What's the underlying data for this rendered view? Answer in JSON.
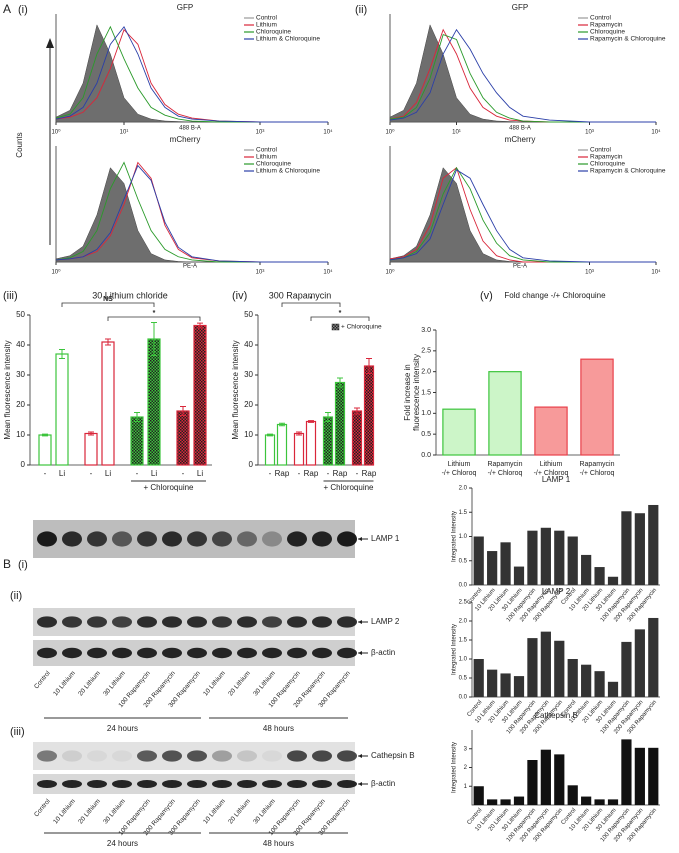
{
  "figure_labels": [
    "A",
    "B"
  ],
  "blots": {
    "lanes": [
      "Control",
      "10 Lithium",
      "20 Lithium",
      "30 Lithium",
      "100 Rapamycin",
      "200 Rapamycin",
      "300 Rapamycin",
      "10 Lithium",
      "20 Lithium",
      "30 Lithium",
      "100 Rapamycin",
      "200 Rapamycin",
      "300 Rapamycin"
    ],
    "groups": [
      "24 hours",
      "48 hours"
    ],
    "panels": [
      {
        "label": "(i)",
        "bands": [
          "LAMP 1"
        ]
      },
      {
        "label": "(ii)",
        "bands": [
          "LAMP 2",
          "β-actin"
        ]
      },
      {
        "label": "(iii)",
        "bands": [
          "Cathepsin B",
          "β-actin"
        ]
      }
    ]
  },
  "chart_data": [
    {
      "type": "flow",
      "panel": "(i)",
      "title": "GFP",
      "ylabel": "Counts",
      "xlabel": "488 B-A",
      "log_x": true,
      "x": [
        1,
        1.6,
        2.5,
        4,
        6.3,
        10,
        16,
        25,
        40,
        63,
        100,
        250,
        1000,
        10000
      ],
      "xlim": [
        1,
        10000
      ],
      "ylim": [
        0,
        105
      ],
      "xticks": [
        {
          "value": 1,
          "label": "10⁰"
        },
        {
          "value": 10,
          "label": "10¹"
        },
        {
          "value": 1000,
          "label": "10³"
        },
        {
          "value": 10000,
          "label": "10⁴"
        }
      ],
      "series": [
        {
          "name": "Control",
          "color": "#6e6e6e",
          "fill": true,
          "values": [
            5,
            12,
            40,
            100,
            70,
            25,
            8,
            3,
            1,
            0.5,
            0,
            0,
            0,
            0
          ]
        },
        {
          "name": "Lithium",
          "color": "#d9263a",
          "values": [
            3,
            5,
            10,
            25,
            55,
            95,
            80,
            40,
            18,
            8,
            4,
            1,
            0,
            0
          ]
        },
        {
          "name": "Chloroquine",
          "color": "#2a9a2a",
          "values": [
            4,
            8,
            25,
            70,
            98,
            65,
            35,
            15,
            7,
            3,
            1,
            0,
            0,
            0
          ]
        },
        {
          "name": "Lithium & Chloroquine",
          "color": "#2b3fa8",
          "values": [
            3,
            6,
            15,
            40,
            80,
            98,
            70,
            35,
            15,
            6,
            3,
            1,
            0,
            0
          ]
        }
      ]
    },
    {
      "type": "flow",
      "title": "mCherry",
      "xlabel": "PE-A",
      "log_x": true,
      "x": [
        1,
        1.6,
        2.5,
        4,
        6.3,
        10,
        16,
        25,
        40,
        63,
        100,
        250,
        1000,
        10000
      ],
      "xlim": [
        1,
        10000
      ],
      "ylim": [
        0,
        105
      ],
      "xticks": [
        {
          "value": 1,
          "label": "10⁰"
        },
        {
          "value": 1000,
          "label": "10³"
        },
        {
          "value": 10000,
          "label": "10⁴"
        }
      ],
      "series": [
        {
          "name": "Control",
          "color": "#6e6e6e",
          "fill": true,
          "values": [
            3,
            6,
            15,
            45,
            90,
            75,
            30,
            8,
            2,
            0.5,
            0,
            0,
            0,
            0
          ]
        },
        {
          "name": "Lithium",
          "color": "#d9263a",
          "values": [
            2,
            3,
            5,
            10,
            25,
            55,
            95,
            80,
            35,
            12,
            4,
            1,
            0,
            0
          ]
        },
        {
          "name": "Chloroquine",
          "color": "#2a9a2a",
          "values": [
            2,
            4,
            10,
            30,
            70,
            95,
            60,
            30,
            12,
            5,
            2,
            0,
            0,
            0
          ]
        },
        {
          "name": "Lithium & Chloroquine",
          "color": "#2b3fa8",
          "values": [
            2,
            3,
            5,
            12,
            28,
            60,
            92,
            78,
            38,
            14,
            5,
            1,
            0,
            0
          ]
        }
      ]
    },
    {
      "type": "flow",
      "panel": "(ii)",
      "title": "GFP",
      "xlabel": "488 B-A",
      "log_x": true,
      "x": [
        1,
        1.6,
        2.5,
        4,
        6.3,
        10,
        16,
        25,
        40,
        63,
        100,
        250,
        1000,
        10000
      ],
      "xlim": [
        1,
        10000
      ],
      "ylim": [
        0,
        105
      ],
      "xticks": [
        {
          "value": 1,
          "label": "10⁰"
        },
        {
          "value": 10,
          "label": "10¹"
        },
        {
          "value": 1000,
          "label": "10³"
        },
        {
          "value": 10000,
          "label": "10⁴"
        }
      ],
      "series": [
        {
          "name": "Control",
          "color": "#6e6e6e",
          "fill": true,
          "values": [
            5,
            12,
            40,
            100,
            70,
            25,
            8,
            3,
            1,
            0.5,
            0,
            0,
            0,
            0
          ]
        },
        {
          "name": "Rapamycin",
          "color": "#d9263a",
          "values": [
            3,
            6,
            20,
            55,
            95,
            70,
            35,
            15,
            6,
            2,
            1,
            0,
            0,
            0
          ]
        },
        {
          "name": "Chloroquine",
          "color": "#2a9a2a",
          "values": [
            3,
            5,
            15,
            45,
            90,
            85,
            50,
            25,
            10,
            4,
            1,
            0,
            0,
            0
          ]
        },
        {
          "name": "Rapamycin & Chloroquine",
          "color": "#2b3fa8",
          "values": [
            2,
            4,
            10,
            30,
            70,
            95,
            75,
            50,
            30,
            15,
            6,
            2,
            0,
            0
          ]
        }
      ]
    },
    {
      "type": "flow",
      "title": "mCherry",
      "xlabel": "PE-A",
      "log_x": true,
      "x": [
        1,
        1.6,
        2.5,
        4,
        6.3,
        10,
        16,
        25,
        40,
        63,
        100,
        250,
        1000,
        10000
      ],
      "xlim": [
        1,
        10000
      ],
      "ylim": [
        0,
        105
      ],
      "xticks": [
        {
          "value": 1,
          "label": "10⁰"
        },
        {
          "value": 1000,
          "label": "10³"
        },
        {
          "value": 10000,
          "label": "10⁴"
        }
      ],
      "series": [
        {
          "name": "Control",
          "color": "#6e6e6e",
          "fill": true,
          "values": [
            3,
            6,
            15,
            45,
            90,
            75,
            30,
            8,
            2,
            0.5,
            0,
            0,
            0,
            0
          ]
        },
        {
          "name": "Rapamycin",
          "color": "#d9263a",
          "values": [
            3,
            5,
            12,
            35,
            80,
            90,
            50,
            20,
            6,
            2,
            0,
            0,
            0,
            0
          ]
        },
        {
          "name": "Chloroquine",
          "color": "#2a9a2a",
          "values": [
            2,
            4,
            10,
            28,
            65,
            90,
            70,
            40,
            18,
            6,
            2,
            0,
            0,
            0
          ]
        },
        {
          "name": "Rapamycin & Chloroquine",
          "color": "#2b3fa8",
          "values": [
            2,
            4,
            8,
            22,
            55,
            88,
            80,
            55,
            30,
            12,
            4,
            1,
            0,
            0
          ]
        }
      ]
    },
    {
      "type": "pairbar",
      "panel": "(iii)",
      "title": "30 Lithium chloride",
      "ylabel": "Mean fluorescence intensity",
      "group_label": "+ Chloroquine",
      "categories": [
        "-",
        "Li",
        "-",
        "Li",
        "-",
        "Li",
        "-",
        "Li"
      ],
      "values": [
        10,
        37,
        10.5,
        41,
        16,
        42,
        18,
        46.5
      ],
      "errors": [
        0.3,
        1.5,
        0.5,
        1,
        1.5,
        5.5,
        1.5,
        0.8
      ],
      "colors": [
        "#3cc43c",
        "#3cc43c",
        "#d9263a",
        "#d9263a",
        "#3cc43c",
        "#3cc43c",
        "#d9263a",
        "#d9263a"
      ],
      "hatched": [
        false,
        false,
        false,
        false,
        true,
        true,
        true,
        true
      ],
      "ylim": [
        0,
        50
      ],
      "yticks": [
        0,
        10,
        20,
        30,
        40,
        50
      ],
      "annotations": [
        {
          "text": "NS",
          "from": 1,
          "to": 5
        },
        {
          "text": "*",
          "from": 3,
          "to": 7
        }
      ]
    },
    {
      "type": "pairbar",
      "panel": "(iv)",
      "title": "300 Rapamycin",
      "ylabel": "Mean fluorescence intensity",
      "group_label": "+ Chloroquine",
      "legend": "+ Chloroquine",
      "categories": [
        "-",
        "Rap",
        "-",
        "Rap",
        "-",
        "Rap",
        "-",
        "Rap"
      ],
      "values": [
        10,
        13.5,
        10.5,
        14.5,
        16,
        27.5,
        18,
        33
      ],
      "errors": [
        0.3,
        0.4,
        0.5,
        0.3,
        1.5,
        1.5,
        1,
        2.5
      ],
      "colors": [
        "#3cc43c",
        "#3cc43c",
        "#d9263a",
        "#d9263a",
        "#3cc43c",
        "#3cc43c",
        "#d9263a",
        "#d9263a"
      ],
      "hatched": [
        false,
        false,
        false,
        false,
        true,
        true,
        true,
        true
      ],
      "ylim": [
        0,
        50
      ],
      "yticks": [
        0,
        10,
        20,
        30,
        40,
        50
      ],
      "annotations": [
        {
          "text": "*",
          "from": 1,
          "to": 5
        },
        {
          "text": "*",
          "from": 3,
          "to": 7
        }
      ]
    },
    {
      "type": "foldbar",
      "panel": "(v)",
      "title": "Fold change -/+ Chloroquine",
      "ylabel": [
        "Fold increase in",
        "fluorescence intensity"
      ],
      "categories": [
        [
          "Lithium",
          "-/+ Chloroq"
        ],
        [
          "Rapamycin",
          "-/+ Chloroq"
        ],
        [
          "Lithium",
          "-/+ Chloroq"
        ],
        [
          "Rapamycin",
          "-/+ Chloroq"
        ]
      ],
      "values": [
        1.1,
        2.0,
        1.15,
        2.3
      ],
      "colors": [
        "#3cc43c",
        "#3cc43c",
        "#e8404a",
        "#e8404a"
      ],
      "fills": [
        "#ccf5c8",
        "#ccf5c8",
        "#f79a9a",
        "#f79a9a"
      ],
      "ylim": [
        0,
        3
      ],
      "yticks": [
        {
          "value": 0,
          "label": "0.0"
        },
        {
          "value": 0.5,
          "label": "0.5"
        },
        {
          "value": 1,
          "label": "1.0"
        },
        {
          "value": 1.5,
          "label": "1.5"
        },
        {
          "value": 2,
          "label": "2.0"
        },
        {
          "value": 2.5,
          "label": "2.5"
        },
        {
          "value": 3,
          "label": "3.0"
        }
      ]
    },
    {
      "type": "bar",
      "title": "LAMP 1",
      "ylabel": "Integrated Intensity",
      "color": "#333333",
      "categories": [
        "Control",
        "10 Lithium",
        "20 Lithium",
        "30 Lithium",
        "100 Rapamycin",
        "200 Rapamycin",
        "300 Rapamycin",
        "Control",
        "10 Lithium",
        "20 Lithium",
        "30 Lithium",
        "100 Rapamycin",
        "200 Rapamycin",
        "300 Rapamycin"
      ],
      "values": [
        1.0,
        0.7,
        0.88,
        0.38,
        1.12,
        1.18,
        1.12,
        1.0,
        0.62,
        0.37,
        0.17,
        1.52,
        1.48,
        1.65
      ],
      "ylim": [
        0,
        2
      ],
      "yticks": [
        {
          "value": 0,
          "label": "0.0"
        },
        {
          "value": 0.5,
          "label": "0.5"
        },
        {
          "value": 1,
          "label": "1.0"
        },
        {
          "value": 1.5,
          "label": "1.5"
        },
        {
          "value": 2,
          "label": "2.0"
        }
      ]
    },
    {
      "type": "bar",
      "title": "LAMP 2",
      "ylabel": "Integrated Intensity",
      "color": "#333333",
      "categories": [
        "Control",
        "10 Lithium",
        "20 Lithium",
        "30 Lithium",
        "100 Rapamycin",
        "200 Rapamycin",
        "300 Rapamycin",
        "Control",
        "10 Lithium",
        "20 Lithium",
        "30 Lithium",
        "100 Rapamycin",
        "200 Rapamycin",
        "300 Rapamycin"
      ],
      "values": [
        1.0,
        0.72,
        0.62,
        0.55,
        1.55,
        1.72,
        1.48,
        1.0,
        0.85,
        0.68,
        0.4,
        1.45,
        1.78,
        2.08
      ],
      "ylim": [
        0,
        2.5
      ],
      "yticks": [
        {
          "value": 0,
          "label": "0.0"
        },
        {
          "value": 0.5,
          "label": "0.5"
        },
        {
          "value": 1,
          "label": "1.0"
        },
        {
          "value": 1.5,
          "label": "1.5"
        },
        {
          "value": 2,
          "label": "2.0"
        },
        {
          "value": 2.5,
          "label": "2.5"
        }
      ]
    },
    {
      "type": "bar",
      "title": "Cathepsin B",
      "ylabel": "Integrated Intensity",
      "color": "#111111",
      "categories": [
        "Control",
        "10 Lithium",
        "20 Lithium",
        "30 Lithium",
        "100 Rapamycin",
        "200 Rapamycin",
        "300 Rapamycin",
        "Control",
        "10 Lithium",
        "20 Lithium",
        "30 Lithium",
        "100 Rapamycin",
        "200 Rapamycin",
        "300 Rapamycin"
      ],
      "values": [
        1.0,
        0.3,
        0.3,
        0.45,
        2.4,
        2.95,
        2.7,
        1.05,
        0.45,
        0.3,
        0.3,
        3.5,
        3.05,
        3.05
      ],
      "ylim": [
        0,
        4
      ],
      "yticks": [
        1,
        2,
        3
      ]
    }
  ]
}
